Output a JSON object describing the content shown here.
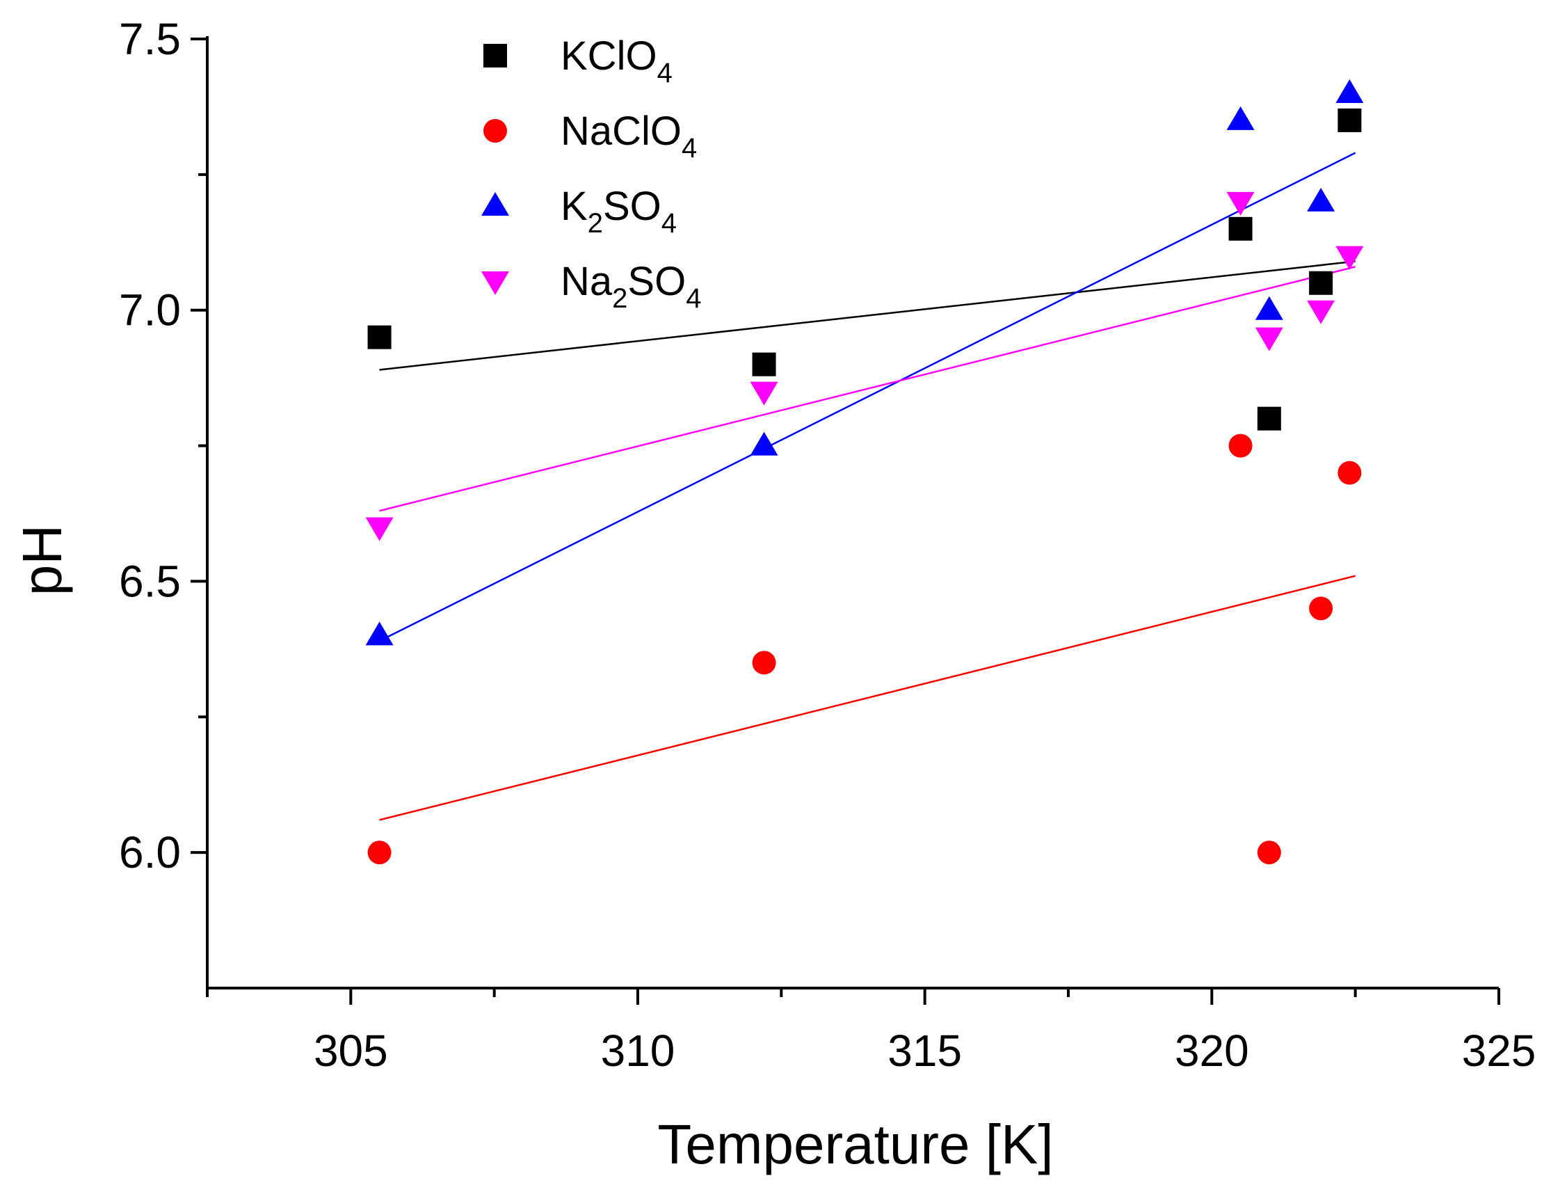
{
  "chart_data": {
    "type": "scatter",
    "xlabel": "Temperature [K]",
    "ylabel": "pH",
    "xlim": [
      302.5,
      325
    ],
    "ylim": [
      5.75,
      7.5
    ],
    "x_ticks": [
      305,
      310,
      315,
      320,
      325
    ],
    "x_tick_labels": [
      "305",
      "310",
      "315",
      "320",
      "325"
    ],
    "x_minor_ticks": [
      302.5,
      307.5,
      312.5,
      317.5,
      322.5
    ],
    "y_ticks": [
      6.0,
      6.5,
      7.0,
      7.5
    ],
    "y_tick_labels": [
      "6.0",
      "6.5",
      "7.0",
      "7.5"
    ],
    "y_minor_ticks": [
      6.25,
      6.75,
      7.25
    ],
    "grid": false,
    "legend_position": "top-left",
    "series": [
      {
        "name_base": "KClO",
        "name_sub": "4",
        "name_mid": "",
        "name_sub2": "",
        "marker": "square",
        "color": "#000000",
        "x": [
          305.5,
          312.2,
          320.5,
          321.0,
          321.9,
          322.4
        ],
        "y": [
          6.95,
          6.9,
          7.15,
          6.8,
          7.05,
          7.35
        ],
        "fit": {
          "x": [
            305.5,
            322.5
          ],
          "y": [
            6.89,
            7.09
          ]
        }
      },
      {
        "name_base": "NaClO",
        "name_sub": "4",
        "name_mid": "",
        "name_sub2": "",
        "marker": "circle",
        "color": "#ff0000",
        "x": [
          305.5,
          312.2,
          320.5,
          321.0,
          321.9,
          322.4
        ],
        "y": [
          6.0,
          6.35,
          6.75,
          6.0,
          6.45,
          6.7
        ],
        "fit": {
          "x": [
            305.5,
            322.5
          ],
          "y": [
            6.06,
            6.51
          ]
        }
      },
      {
        "name_base": "K",
        "name_sub": "2",
        "name_mid": "SO",
        "name_sub2": "4",
        "marker": "triangle-up",
        "color": "#0000ff",
        "x": [
          305.5,
          312.2,
          320.5,
          321.0,
          321.9,
          322.4
        ],
        "y": [
          6.4,
          6.75,
          7.35,
          7.0,
          7.2,
          7.4
        ],
        "fit": {
          "x": [
            305.5,
            322.5
          ],
          "y": [
            6.39,
            7.29
          ]
        }
      },
      {
        "name_base": "Na",
        "name_sub": "2",
        "name_mid": "SO",
        "name_sub2": "4",
        "marker": "triangle-down",
        "color": "#ff00ff",
        "x": [
          305.5,
          312.2,
          320.5,
          321.0,
          321.9,
          322.4
        ],
        "y": [
          6.6,
          6.85,
          7.2,
          6.95,
          7.0,
          7.1
        ],
        "fit": {
          "x": [
            305.5,
            322.5
          ],
          "y": [
            6.63,
            7.08
          ]
        }
      }
    ]
  }
}
